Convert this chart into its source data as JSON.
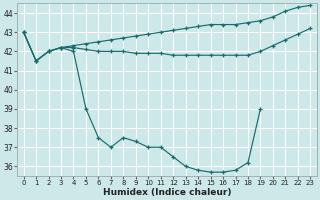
{
  "xlabel": "Humidex (Indice chaleur)",
  "bg_color": "#cce8e8",
  "grid_color": "#ffffff",
  "line_color": "#1a6b6b",
  "xlim": [
    -0.5,
    23.5
  ],
  "ylim": [
    35.5,
    44.5
  ],
  "xticks": [
    0,
    1,
    2,
    3,
    4,
    5,
    6,
    7,
    8,
    9,
    10,
    11,
    12,
    13,
    14,
    15,
    16,
    17,
    18,
    19,
    20,
    21,
    22,
    23
  ],
  "yticks": [
    36,
    37,
    38,
    39,
    40,
    41,
    42,
    43,
    44
  ],
  "line_top_x": [
    0,
    1,
    2,
    3,
    4,
    5,
    6,
    7,
    8,
    9,
    10,
    11,
    12,
    13,
    14,
    15,
    16,
    17,
    18,
    19,
    20,
    21,
    22,
    23
  ],
  "line_top_y": [
    43.0,
    41.5,
    42.0,
    42.2,
    42.3,
    42.4,
    42.5,
    42.6,
    42.7,
    42.8,
    42.9,
    43.0,
    43.1,
    43.2,
    43.3,
    43.4,
    43.4,
    43.4,
    43.5,
    43.6,
    43.8,
    44.1,
    44.3,
    44.4
  ],
  "line_mid_x": [
    0,
    1,
    2,
    3,
    4,
    5,
    6,
    7,
    8,
    9,
    10,
    11,
    12,
    13,
    14,
    15,
    16,
    17,
    18,
    19,
    20,
    21,
    22,
    23
  ],
  "line_mid_y": [
    43.0,
    41.5,
    42.0,
    42.2,
    42.2,
    42.1,
    42.0,
    42.0,
    42.0,
    41.9,
    41.9,
    41.9,
    41.8,
    41.8,
    41.8,
    41.8,
    41.8,
    41.8,
    41.8,
    42.0,
    42.3,
    42.6,
    42.9,
    43.2
  ],
  "line_bot_x": [
    0,
    1,
    2,
    3,
    4,
    5,
    6,
    7,
    8,
    9,
    10,
    11,
    12,
    13,
    14,
    15,
    16,
    17,
    18,
    19,
    20,
    21,
    22,
    23
  ],
  "line_bot_y": [
    43.0,
    41.5,
    42.0,
    42.2,
    42.0,
    39.0,
    37.5,
    37.0,
    37.5,
    37.3,
    37.0,
    37.0,
    36.5,
    36.0,
    35.8,
    35.7,
    35.7,
    35.8,
    36.2,
    39.0,
    null,
    null,
    null,
    null
  ]
}
